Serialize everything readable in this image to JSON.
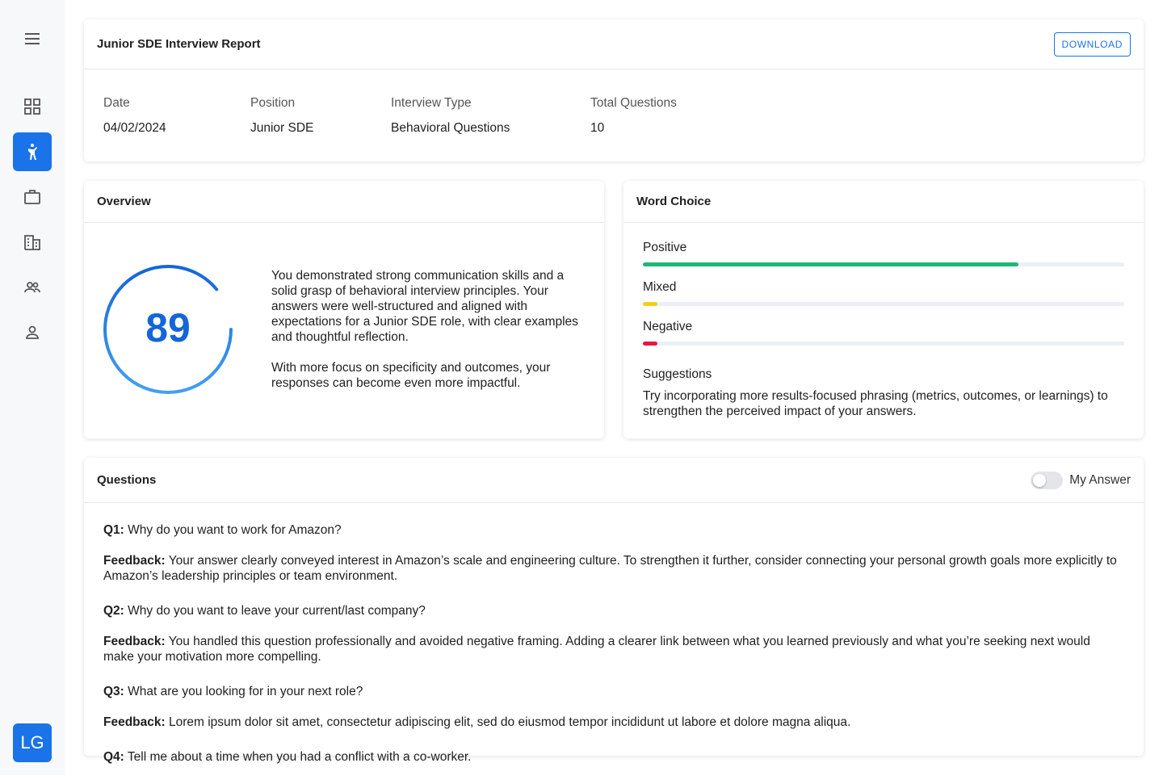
{
  "sidebar": {
    "avatar": "LG"
  },
  "header": {
    "title": "Junior SDE Interview Report",
    "download": "DOWNLOAD"
  },
  "details": [
    {
      "label": "Date",
      "value": "04/02/2024"
    },
    {
      "label": "Position",
      "value": "Junior SDE"
    },
    {
      "label": "Interview Type",
      "value": "Behavioral Questions"
    },
    {
      "label": "Total Questions",
      "value": "10"
    }
  ],
  "overview": {
    "title": "Overview",
    "score": 89,
    "score_max": 100,
    "paragraphs": [
      "You demonstrated strong communication skills and a solid grasp of behavioral interview principles. Your answers were well-structured and aligned with expectations for a Junior SDE role, with clear examples and thoughtful reflection.",
      "With more focus on specificity and outcomes, your responses can become even more impactful."
    ]
  },
  "word_choice": {
    "title": "Word Choice",
    "max": 100,
    "items": [
      {
        "label": "Positive",
        "value": 78,
        "color": "#1db877"
      },
      {
        "label": "Mixed",
        "value": 3,
        "color": "#f2d01c"
      },
      {
        "label": "Negative",
        "value": 3,
        "color": "#e8173f"
      }
    ],
    "suggestions_title": "Suggestions",
    "suggestions": "Try incorporating more results-focused phrasing (metrics, outcomes, or learnings) to strengthen the perceived impact of your answers."
  },
  "questions": {
    "title": "Questions",
    "toggle_label": "My Answer",
    "items": [
      {
        "label": "Q1:",
        "text": "Why do you want to work for Amazon?",
        "feedback_label": "Feedback:",
        "feedback": "Your answer clearly conveyed interest in Amazon’s scale and engineering culture. To strengthen it further, consider connecting your personal growth goals more explicitly to Amazon’s leadership principles or team environment."
      },
      {
        "label": "Q2:",
        "text": "Why do you want to leave your current/last company?",
        "feedback_label": "Feedback:",
        "feedback": "You handled this question professionally and avoided negative framing. Adding a clearer link between what you learned previously and what you’re seeking next would make your motivation more compelling."
      },
      {
        "label": "Q3:",
        "text": "What are you looking for in your next role?",
        "feedback_label": "Feedback:",
        "feedback": "Lorem ipsum dolor sit amet, consectetur adipiscing elit, sed do eiusmod tempor incididunt ut labore et dolore magna aliqua."
      },
      {
        "label": "Q4:",
        "text": "Tell me about a time when you had a conflict with a co-worker."
      }
    ]
  }
}
